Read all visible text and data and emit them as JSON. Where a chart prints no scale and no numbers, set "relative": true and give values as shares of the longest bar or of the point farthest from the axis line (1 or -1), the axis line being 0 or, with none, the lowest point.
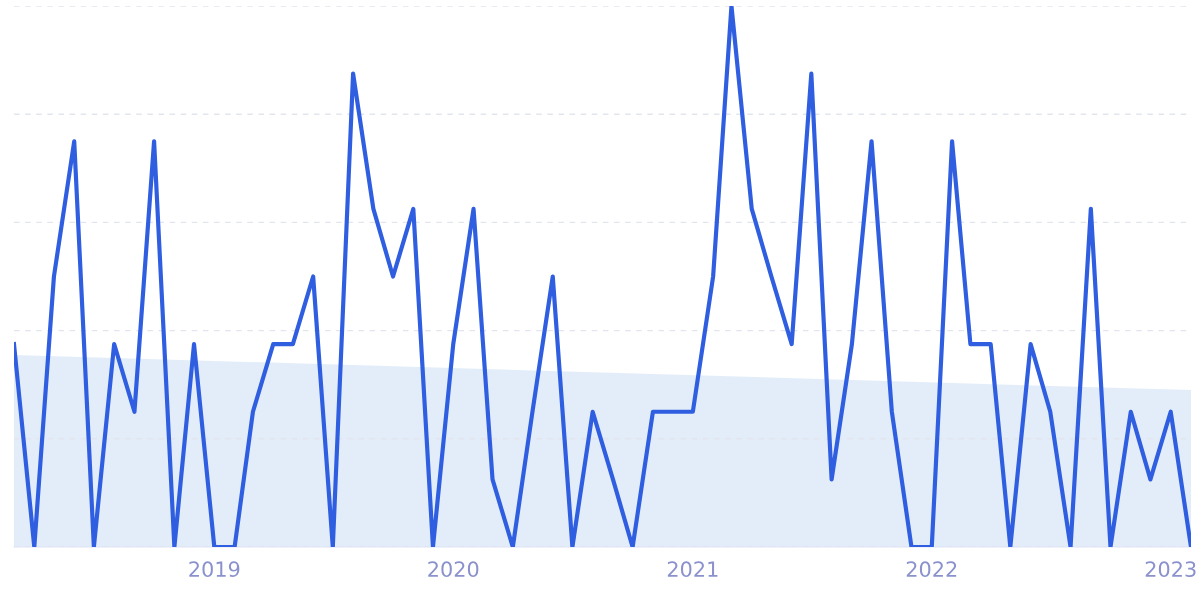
{
  "chart_data": {
    "type": "line",
    "relative": true,
    "grid": "y",
    "x": [
      "2018-03",
      "2018-04",
      "2018-05",
      "2018-06",
      "2018-07",
      "2018-08",
      "2018-09",
      "2018-10",
      "2018-11",
      "2018-12",
      "2019-01",
      "2019-02",
      "2019-03",
      "2019-04",
      "2019-05",
      "2019-06",
      "2019-07",
      "2019-08",
      "2019-09",
      "2019-10",
      "2019-11",
      "2019-12",
      "2020-01",
      "2020-02",
      "2020-03",
      "2020-04",
      "2020-05",
      "2020-06",
      "2020-07",
      "2020-08",
      "2020-09",
      "2020-10",
      "2020-11",
      "2020-12",
      "2021-01",
      "2021-02",
      "2021-03",
      "2021-04",
      "2021-05",
      "2021-06",
      "2021-07",
      "2021-08",
      "2021-09",
      "2021-10",
      "2021-11",
      "2021-12",
      "2022-01",
      "2022-02",
      "2022-03",
      "2022-04",
      "2022-05",
      "2022-06",
      "2022-07",
      "2022-08",
      "2022-09",
      "2022-10",
      "2022-11",
      "2022-12",
      "2023-01",
      "2023-02"
    ],
    "xlim": [
      "2018-03",
      "2023-02"
    ],
    "xticks": [
      {
        "value": "2019-01",
        "label": "2019"
      },
      {
        "value": "2020-01",
        "label": "2020"
      },
      {
        "value": "2021-01",
        "label": "2021"
      },
      {
        "value": "2022-01",
        "label": "2022"
      },
      {
        "value": "2023-01",
        "label": "2023"
      }
    ],
    "series": [
      {
        "type": "area",
        "color": "#dce8f8",
        "x": [
          "2018-03",
          "2023-02"
        ],
        "values": [
          0.355,
          0.29
        ]
      },
      {
        "color": "#2f5fe0",
        "values": [
          0.375,
          0,
          0.5,
          0.75,
          0,
          0.375,
          0.25,
          0.75,
          0,
          0.375,
          0,
          0,
          0.25,
          0.375,
          0.375,
          0.5,
          0,
          0.875,
          0.625,
          0.5,
          0.625,
          0,
          0.375,
          0.625,
          0.125,
          0,
          0.25,
          0.5,
          0,
          0.25,
          0.125,
          0,
          0.25,
          0.25,
          0.25,
          0.5,
          1,
          0.625,
          0.5,
          0.375,
          0.875,
          0.125,
          0.375,
          0.75,
          0.25,
          0,
          0,
          0.75,
          0.375,
          0.375,
          0,
          0.375,
          0.25,
          0,
          0.625,
          0,
          0.25,
          0.125,
          0.25,
          0
        ]
      }
    ]
  }
}
